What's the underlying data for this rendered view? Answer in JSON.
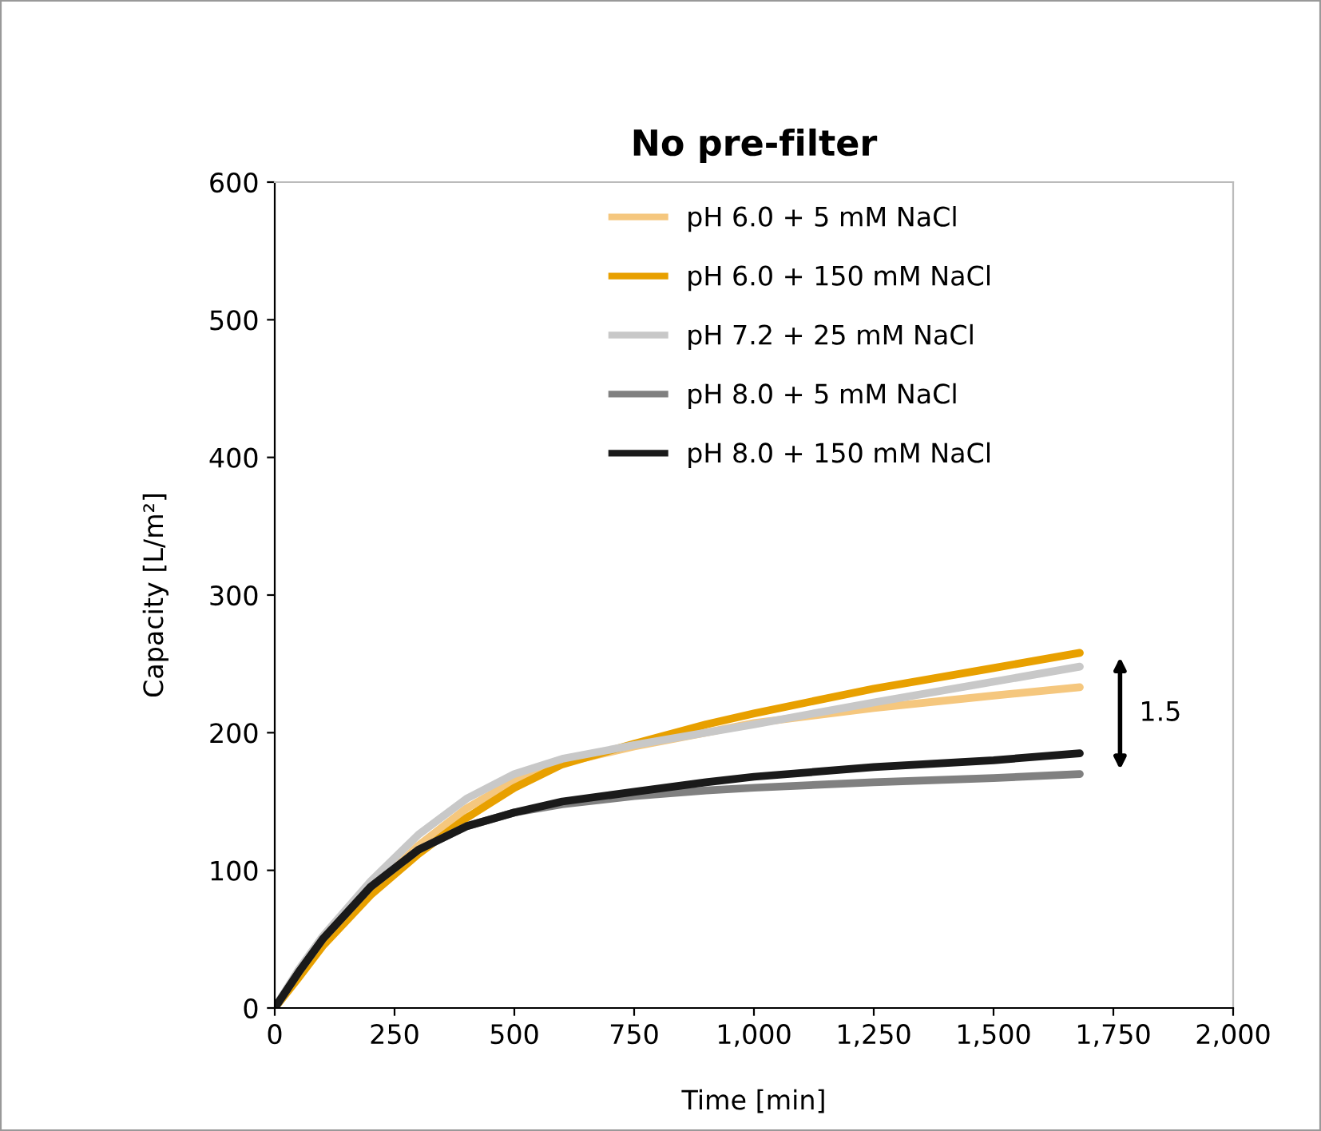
{
  "chart_data": {
    "type": "line",
    "title": "No pre-filter",
    "xlabel": "Time [min]",
    "ylabel": "Capacity [L/m²]",
    "x": [
      0,
      50,
      100,
      200,
      300,
      400,
      500,
      600,
      750,
      900,
      1000,
      1250,
      1500,
      1680
    ],
    "series": [
      {
        "name": "pH 6.0 + 5 mM NaCl",
        "color": "#f5c77e",
        "values": [
          0,
          25,
          48,
          85,
          118,
          145,
          165,
          178,
          190,
          200,
          207,
          218,
          227,
          233
        ]
      },
      {
        "name": "pH 6.0 + 150 mM NaCl",
        "color": "#e8a000",
        "values": [
          0,
          22,
          45,
          82,
          112,
          138,
          160,
          177,
          192,
          206,
          214,
          232,
          247,
          258
        ]
      },
      {
        "name": "pH 7.2 + 25 mM NaCl",
        "color": "#c8c8c8",
        "values": [
          0,
          28,
          52,
          92,
          126,
          152,
          170,
          181,
          191,
          200,
          206,
          222,
          237,
          248
        ]
      },
      {
        "name": "pH 8.0 + 5 mM NaCl",
        "color": "#808080",
        "values": [
          0,
          26,
          50,
          88,
          115,
          132,
          142,
          148,
          154,
          158,
          160,
          164,
          167,
          170
        ]
      },
      {
        "name": "pH 8.0 + 150 mM NaCl",
        "color": "#1a1a1a",
        "values": [
          0,
          26,
          50,
          88,
          115,
          132,
          142,
          150,
          157,
          164,
          168,
          175,
          180,
          185
        ]
      }
    ],
    "xlim": [
      0,
      2000
    ],
    "xticks": [
      0,
      250,
      500,
      750,
      {
        "value": 1000,
        "label": "1,000"
      },
      {
        "value": 1250,
        "label": "1,250"
      },
      {
        "value": 1500,
        "label": "1,500"
      },
      {
        "value": 1750,
        "label": "1,750"
      },
      {
        "value": 2000,
        "label": "2,000"
      }
    ],
    "ylim": [
      0,
      600
    ],
    "yticks": [
      0,
      100,
      200,
      300,
      400,
      500,
      600
    ],
    "annotations": [
      "1.5"
    ],
    "legend": "top",
    "grid": false,
    "marker": "none",
    "line_style": "solid"
  }
}
